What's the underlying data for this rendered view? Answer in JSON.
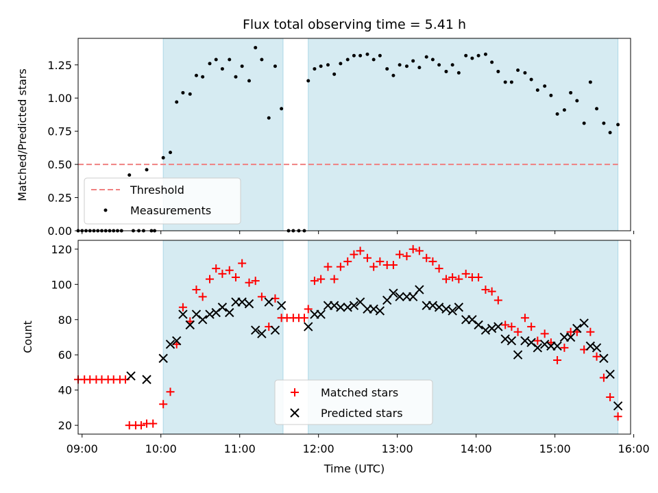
{
  "chart_data": [
    {
      "type": "scatter",
      "title": "Flux total observing time = 5.41 h",
      "ylabel": "Matched/Predicted stars",
      "xlabel": "",
      "xlim": [
        8.95,
        15.96
      ],
      "ylim": [
        0,
        1.45
      ],
      "yticks": [
        0.0,
        0.25,
        0.5,
        0.75,
        1.0,
        1.25
      ],
      "ytick_labels": [
        "0.00",
        "0.25",
        "0.50",
        "0.75",
        "1.00",
        "1.25"
      ],
      "shaded_intervals": [
        [
          10.03,
          11.55
        ],
        [
          11.87,
          15.8
        ]
      ],
      "threshold": {
        "name": "Threshold",
        "value": 0.5,
        "x_range": [
          8.95,
          15.8
        ],
        "color": "#f08080"
      },
      "measurements": {
        "name": "Measurements",
        "color": "#000000",
        "points": [
          [
            8.95,
            0.0
          ],
          [
            9.0,
            0.0
          ],
          [
            9.05,
            0.0
          ],
          [
            9.1,
            0.0
          ],
          [
            9.15,
            0.0
          ],
          [
            9.2,
            0.0
          ],
          [
            9.25,
            0.0
          ],
          [
            9.3,
            0.0
          ],
          [
            9.35,
            0.0
          ],
          [
            9.4,
            0.0
          ],
          [
            9.45,
            0.0
          ],
          [
            9.5,
            0.0
          ],
          [
            9.6,
            0.42
          ],
          [
            9.65,
            0.0
          ],
          [
            9.72,
            0.0
          ],
          [
            9.78,
            0.0
          ],
          [
            9.82,
            0.46
          ],
          [
            9.88,
            0.0
          ],
          [
            9.92,
            0.0
          ],
          [
            10.03,
            0.55
          ],
          [
            10.12,
            0.59
          ],
          [
            10.2,
            0.97
          ],
          [
            10.28,
            1.04
          ],
          [
            10.37,
            1.03
          ],
          [
            10.45,
            1.17
          ],
          [
            10.53,
            1.16
          ],
          [
            10.62,
            1.26
          ],
          [
            10.7,
            1.29
          ],
          [
            10.78,
            1.22
          ],
          [
            10.87,
            1.29
          ],
          [
            10.95,
            1.16
          ],
          [
            11.03,
            1.24
          ],
          [
            11.12,
            1.13
          ],
          [
            11.2,
            1.38
          ],
          [
            11.28,
            1.29
          ],
          [
            11.37,
            0.85
          ],
          [
            11.45,
            1.24
          ],
          [
            11.53,
            0.92
          ],
          [
            11.62,
            0.0
          ],
          [
            11.68,
            0.0
          ],
          [
            11.75,
            0.0
          ],
          [
            11.82,
            0.0
          ],
          [
            11.87,
            1.13
          ],
          [
            11.95,
            1.22
          ],
          [
            12.03,
            1.24
          ],
          [
            12.12,
            1.25
          ],
          [
            12.2,
            1.18
          ],
          [
            12.28,
            1.26
          ],
          [
            12.37,
            1.29
          ],
          [
            12.45,
            1.32
          ],
          [
            12.53,
            1.32
          ],
          [
            12.62,
            1.33
          ],
          [
            12.7,
            1.29
          ],
          [
            12.78,
            1.32
          ],
          [
            12.87,
            1.22
          ],
          [
            12.95,
            1.17
          ],
          [
            13.03,
            1.25
          ],
          [
            13.12,
            1.24
          ],
          [
            13.2,
            1.28
          ],
          [
            13.28,
            1.23
          ],
          [
            13.37,
            1.31
          ],
          [
            13.45,
            1.29
          ],
          [
            13.53,
            1.25
          ],
          [
            13.62,
            1.2
          ],
          [
            13.7,
            1.25
          ],
          [
            13.78,
            1.19
          ],
          [
            13.87,
            1.32
          ],
          [
            13.95,
            1.3
          ],
          [
            14.03,
            1.32
          ],
          [
            14.12,
            1.33
          ],
          [
            14.2,
            1.27
          ],
          [
            14.28,
            1.2
          ],
          [
            14.37,
            1.12
          ],
          [
            14.45,
            1.12
          ],
          [
            14.53,
            1.21
          ],
          [
            14.62,
            1.19
          ],
          [
            14.7,
            1.14
          ],
          [
            14.78,
            1.06
          ],
          [
            14.87,
            1.09
          ],
          [
            14.95,
            1.02
          ],
          [
            15.03,
            0.88
          ],
          [
            15.12,
            0.91
          ],
          [
            15.2,
            1.04
          ],
          [
            15.28,
            0.98
          ],
          [
            15.37,
            0.81
          ],
          [
            15.45,
            1.12
          ],
          [
            15.53,
            0.92
          ],
          [
            15.62,
            0.81
          ],
          [
            15.7,
            0.74
          ],
          [
            15.8,
            0.8
          ]
        ]
      },
      "legend": [
        "Threshold",
        "Measurements"
      ],
      "legend_position": "lower-left"
    },
    {
      "type": "scatter",
      "title": "",
      "xlabel": "Time (UTC)",
      "ylabel": "Count",
      "xlim": [
        8.95,
        15.96
      ],
      "ylim": [
        15,
        125
      ],
      "yticks": [
        20,
        40,
        60,
        80,
        100,
        120
      ],
      "ytick_labels": [
        "20",
        "40",
        "60",
        "80",
        "100",
        "120"
      ],
      "xticks": [
        9,
        10,
        11,
        12,
        13,
        14,
        15,
        16
      ],
      "xtick_labels": [
        "09:00",
        "10:00",
        "11:00",
        "12:00",
        "13:00",
        "14:00",
        "15:00",
        "16:00"
      ],
      "shaded_intervals": [
        [
          10.03,
          11.55
        ],
        [
          11.87,
          15.8
        ]
      ],
      "series": [
        {
          "name": "Matched stars",
          "marker": "plus",
          "color": "#ff0000",
          "points": [
            [
              8.95,
              46
            ],
            [
              9.03,
              46
            ],
            [
              9.1,
              46
            ],
            [
              9.18,
              46
            ],
            [
              9.25,
              46
            ],
            [
              9.33,
              46
            ],
            [
              9.4,
              46
            ],
            [
              9.48,
              46
            ],
            [
              9.55,
              46
            ],
            [
              9.6,
              20
            ],
            [
              9.68,
              20
            ],
            [
              9.75,
              20
            ],
            [
              9.82,
              21
            ],
            [
              9.9,
              21
            ],
            [
              10.03,
              32
            ],
            [
              10.12,
              39
            ],
            [
              10.2,
              66
            ],
            [
              10.28,
              87
            ],
            [
              10.37,
              79
            ],
            [
              10.45,
              97
            ],
            [
              10.53,
              93
            ],
            [
              10.62,
              103
            ],
            [
              10.7,
              109
            ],
            [
              10.78,
              106
            ],
            [
              10.87,
              108
            ],
            [
              10.95,
              104
            ],
            [
              11.03,
              112
            ],
            [
              11.12,
              101
            ],
            [
              11.2,
              102
            ],
            [
              11.28,
              93
            ],
            [
              11.37,
              76
            ],
            [
              11.45,
              92
            ],
            [
              11.53,
              81
            ],
            [
              11.6,
              81
            ],
            [
              11.68,
              81
            ],
            [
              11.75,
              81
            ],
            [
              11.82,
              81
            ],
            [
              11.87,
              86
            ],
            [
              11.95,
              102
            ],
            [
              12.03,
              103
            ],
            [
              12.12,
              110
            ],
            [
              12.2,
              103
            ],
            [
              12.28,
              110
            ],
            [
              12.37,
              113
            ],
            [
              12.45,
              117
            ],
            [
              12.53,
              119
            ],
            [
              12.62,
              115
            ],
            [
              12.7,
              110
            ],
            [
              12.78,
              113
            ],
            [
              12.87,
              111
            ],
            [
              12.95,
              111
            ],
            [
              13.03,
              117
            ],
            [
              13.12,
              116
            ],
            [
              13.2,
              120
            ],
            [
              13.28,
              119
            ],
            [
              13.37,
              115
            ],
            [
              13.45,
              113
            ],
            [
              13.53,
              109
            ],
            [
              13.62,
              103
            ],
            [
              13.7,
              104
            ],
            [
              13.78,
              103
            ],
            [
              13.87,
              106
            ],
            [
              13.95,
              104
            ],
            [
              14.03,
              104
            ],
            [
              14.12,
              97
            ],
            [
              14.2,
              96
            ],
            [
              14.28,
              91
            ],
            [
              14.37,
              77
            ],
            [
              14.45,
              76
            ],
            [
              14.53,
              73
            ],
            [
              14.62,
              81
            ],
            [
              14.7,
              76
            ],
            [
              14.78,
              68
            ],
            [
              14.87,
              72
            ],
            [
              14.95,
              67
            ],
            [
              15.03,
              57
            ],
            [
              15.12,
              64
            ],
            [
              15.2,
              73
            ],
            [
              15.28,
              73
            ],
            [
              15.37,
              63
            ],
            [
              15.45,
              73
            ],
            [
              15.53,
              59
            ],
            [
              15.62,
              47
            ],
            [
              15.7,
              36
            ],
            [
              15.8,
              25
            ]
          ]
        },
        {
          "name": "Predicted stars",
          "marker": "x",
          "color": "#000000",
          "points": [
            [
              9.62,
              48
            ],
            [
              9.82,
              46
            ],
            [
              10.03,
              58
            ],
            [
              10.12,
              66
            ],
            [
              10.2,
              68
            ],
            [
              10.28,
              83
            ],
            [
              10.37,
              77
            ],
            [
              10.45,
              83
            ],
            [
              10.53,
              80
            ],
            [
              10.62,
              83
            ],
            [
              10.7,
              84
            ],
            [
              10.78,
              87
            ],
            [
              10.87,
              84
            ],
            [
              10.95,
              90
            ],
            [
              11.03,
              90
            ],
            [
              11.12,
              89
            ],
            [
              11.2,
              74
            ],
            [
              11.28,
              72
            ],
            [
              11.37,
              90
            ],
            [
              11.45,
              74
            ],
            [
              11.53,
              88
            ],
            [
              11.87,
              76
            ],
            [
              11.95,
              83
            ],
            [
              12.03,
              83
            ],
            [
              12.12,
              88
            ],
            [
              12.2,
              88
            ],
            [
              12.28,
              87
            ],
            [
              12.37,
              87
            ],
            [
              12.45,
              88
            ],
            [
              12.53,
              90
            ],
            [
              12.62,
              86
            ],
            [
              12.7,
              86
            ],
            [
              12.78,
              85
            ],
            [
              12.87,
              91
            ],
            [
              12.95,
              95
            ],
            [
              13.03,
              93
            ],
            [
              13.12,
              93
            ],
            [
              13.2,
              93
            ],
            [
              13.28,
              97
            ],
            [
              13.37,
              88
            ],
            [
              13.45,
              88
            ],
            [
              13.53,
              87
            ],
            [
              13.62,
              86
            ],
            [
              13.7,
              85
            ],
            [
              13.78,
              87
            ],
            [
              13.87,
              80
            ],
            [
              13.95,
              80
            ],
            [
              14.03,
              77
            ],
            [
              14.12,
              74
            ],
            [
              14.2,
              75
            ],
            [
              14.28,
              76
            ],
            [
              14.37,
              69
            ],
            [
              14.45,
              68
            ],
            [
              14.53,
              60
            ],
            [
              14.62,
              68
            ],
            [
              14.7,
              67
            ],
            [
              14.78,
              64
            ],
            [
              14.87,
              66
            ],
            [
              14.95,
              65
            ],
            [
              15.03,
              65
            ],
            [
              15.12,
              70
            ],
            [
              15.2,
              70
            ],
            [
              15.28,
              75
            ],
            [
              15.37,
              78
            ],
            [
              15.45,
              65
            ],
            [
              15.53,
              64
            ],
            [
              15.62,
              58
            ],
            [
              15.7,
              49
            ],
            [
              15.8,
              31
            ]
          ]
        }
      ],
      "legend": [
        "Matched stars",
        "Predicted stars"
      ],
      "legend_position": "lower-center"
    }
  ]
}
